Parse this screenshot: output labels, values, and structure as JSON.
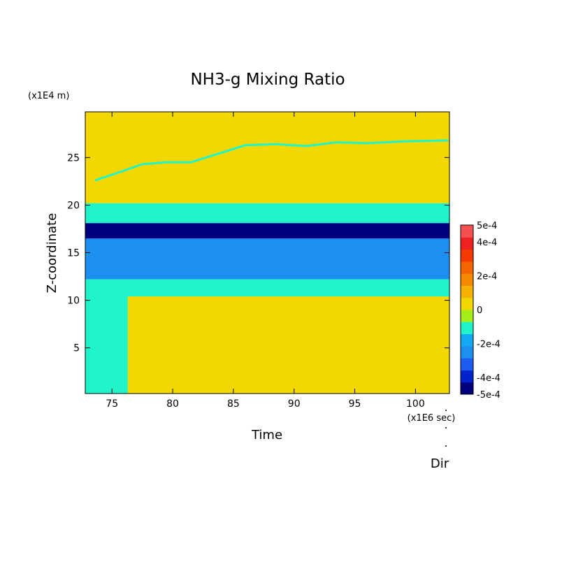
{
  "chart_data": {
    "type": "heatmap",
    "title": "NH3-g Mixing Ratio",
    "xlabel": "Time",
    "ylabel": "Z-coordinate",
    "x_unit": "(x1E6 sec)",
    "y_unit": "(x1E4 m)",
    "footer_label": "Dir",
    "xlim": [
      72.8,
      102.8
    ],
    "ylim": [
      0.2,
      29.8
    ],
    "x_ticks": [
      75,
      80,
      85,
      90,
      95,
      100
    ],
    "x_tick_labels": [
      "75",
      "80",
      "85",
      "90",
      "95",
      "100"
    ],
    "y_ticks": [
      5,
      10,
      15,
      20,
      25
    ],
    "y_tick_labels": [
      "5",
      "10",
      "15",
      "20",
      "25"
    ],
    "grid": false,
    "colorbar": {
      "colors": [
        "#00007f",
        "#0022cc",
        "#1c5cf0",
        "#1c90f0",
        "#12aaf5",
        "#1ff5c8",
        "#a6ee1a",
        "#f2d800",
        "#f5b000",
        "#f58a00",
        "#f56400",
        "#f53a00",
        "#ee2222",
        "#f45050"
      ],
      "tick_values": [
        -0.0005,
        -0.0004,
        -0.0002,
        0,
        0.0002,
        0.0004,
        0.0005
      ],
      "tick_labels": [
        "-5e-4",
        "-4e-4",
        "-2e-4",
        "0",
        "2e-4",
        "4e-4",
        "5e-4"
      ]
    },
    "regions": [
      {
        "name": "upper-zero",
        "x": [
          72.8,
          102.8
        ],
        "z": [
          20.2,
          29.8
        ],
        "value": 0
      },
      {
        "name": "upper-layer",
        "x": [
          72.8,
          102.8
        ],
        "z": [
          18.1,
          20.2
        ],
        "value": -0.0001
      },
      {
        "name": "mid-band",
        "x": [
          72.8,
          102.8
        ],
        "z": [
          12.2,
          18.1
        ],
        "value": -0.00025
      },
      {
        "name": "deep-core",
        "x": [
          72.8,
          102.8
        ],
        "z": [
          16.5,
          18.1
        ],
        "value": -0.00045
      },
      {
        "name": "lower-layer",
        "x": [
          72.8,
          102.8
        ],
        "z": [
          0.2,
          12.2
        ],
        "value": -0.0001
      },
      {
        "name": "lower-zero",
        "x": [
          76.3,
          102.8
        ],
        "z": [
          0.2,
          10.4
        ],
        "value": 0
      }
    ],
    "trace_line": [
      {
        "x": 73.6,
        "y": 22.6
      },
      {
        "x": 75.5,
        "y": 23.4
      },
      {
        "x": 77.5,
        "y": 24.3
      },
      {
        "x": 79.5,
        "y": 24.5
      },
      {
        "x": 81.5,
        "y": 24.5
      },
      {
        "x": 83.5,
        "y": 25.3
      },
      {
        "x": 86.0,
        "y": 26.3
      },
      {
        "x": 88.5,
        "y": 26.4
      },
      {
        "x": 91.0,
        "y": 26.2
      },
      {
        "x": 93.5,
        "y": 26.6
      },
      {
        "x": 96.0,
        "y": 26.5
      },
      {
        "x": 99.0,
        "y": 26.7
      },
      {
        "x": 102.7,
        "y": 26.8
      }
    ]
  }
}
